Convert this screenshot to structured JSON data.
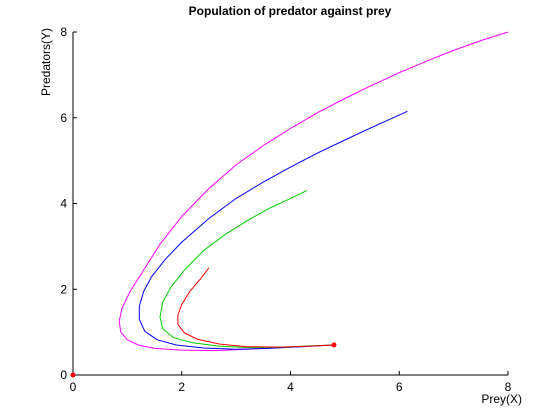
{
  "chart_data": {
    "type": "line",
    "title": "Population of predator against prey",
    "xlabel": "Prey(X)",
    "ylabel": "Predators(Y)",
    "xlim": [
      0,
      8
    ],
    "ylim": [
      0,
      8
    ],
    "xticks": [
      "0",
      "2",
      "4",
      "6",
      "8"
    ],
    "yticks": [
      "0",
      "2",
      "4",
      "6",
      "8"
    ],
    "grid": false,
    "legend": "none",
    "series": [
      {
        "color": "#ff00ff",
        "x": [
          8.0,
          7.5,
          7.0,
          6.5,
          6.0,
          5.5,
          5.0,
          4.5,
          4.0,
          3.5,
          3.0,
          2.5,
          2.0,
          1.6,
          1.3,
          1.05,
          0.9,
          0.85,
          0.88,
          1.0,
          1.2,
          1.5,
          2.0,
          2.6,
          3.2,
          3.8,
          4.3,
          4.8
        ],
        "y": [
          8.0,
          7.8,
          7.57,
          7.32,
          7.05,
          6.76,
          6.45,
          6.12,
          5.75,
          5.35,
          4.9,
          4.35,
          3.7,
          3.05,
          2.45,
          1.95,
          1.55,
          1.25,
          1.0,
          0.82,
          0.7,
          0.62,
          0.58,
          0.57,
          0.6,
          0.64,
          0.67,
          0.7
        ]
      },
      {
        "color": "#0000ff",
        "x": [
          6.15,
          5.8,
          5.4,
          5.0,
          4.5,
          4.0,
          3.5,
          3.0,
          2.5,
          2.0,
          1.7,
          1.45,
          1.3,
          1.22,
          1.22,
          1.32,
          1.55,
          1.9,
          2.4,
          3.0,
          3.6,
          4.2,
          4.8
        ],
        "y": [
          6.15,
          5.95,
          5.72,
          5.48,
          5.18,
          4.85,
          4.5,
          4.12,
          3.65,
          3.1,
          2.7,
          2.3,
          1.95,
          1.6,
          1.3,
          1.02,
          0.82,
          0.7,
          0.63,
          0.6,
          0.62,
          0.66,
          0.7
        ]
      },
      {
        "color": "#00cc00",
        "x": [
          4.3,
          4.0,
          3.6,
          3.2,
          2.8,
          2.4,
          2.05,
          1.8,
          1.65,
          1.6,
          1.65,
          1.85,
          2.2,
          2.7,
          3.3,
          3.9,
          4.4,
          4.8
        ],
        "y": [
          4.3,
          4.12,
          3.88,
          3.6,
          3.28,
          2.9,
          2.45,
          2.05,
          1.7,
          1.35,
          1.08,
          0.87,
          0.75,
          0.67,
          0.64,
          0.65,
          0.68,
          0.7
        ]
      },
      {
        "color": "#ff0000",
        "x": [
          2.5,
          2.35,
          2.15,
          2.0,
          1.93,
          1.93,
          2.05,
          2.3,
          2.7,
          3.2,
          3.8,
          4.3,
          4.8
        ],
        "y": [
          2.5,
          2.25,
          1.95,
          1.65,
          1.4,
          1.18,
          0.98,
          0.83,
          0.72,
          0.66,
          0.65,
          0.67,
          0.7
        ]
      }
    ],
    "markers": [
      {
        "x": 4.8,
        "y": 0.7,
        "color": "#ff0000"
      },
      {
        "x": 0,
        "y": 0,
        "color": "#ff0000"
      }
    ]
  }
}
